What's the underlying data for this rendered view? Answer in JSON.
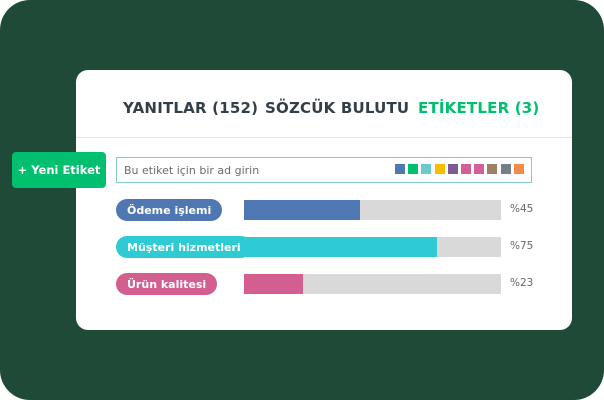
{
  "tabs": [
    {
      "label": "YANITLAR (152)",
      "active": false
    },
    {
      "label": "SÖZCÜK BULUTU",
      "active": false
    },
    {
      "label": "ETİKETLER (3)",
      "active": true
    }
  ],
  "new_tag_button": "+ Yeni Etiket",
  "tag_input": {
    "placeholder": "Bu etiket için bir ad girin",
    "value": ""
  },
  "swatches": [
    "#4f78b3",
    "#00bf6f",
    "#6ec9cf",
    "#f6be00",
    "#7d5a91",
    "#d25f98",
    "#d25f98",
    "#9c8061",
    "#73808a",
    "#f5894a"
  ],
  "tags": [
    {
      "label": "Ödeme işlemi",
      "color": "#4f78b3",
      "percent": 45,
      "percent_label": "%45"
    },
    {
      "label": "Müşteri hizmetleri",
      "color": "#2ecbd4",
      "percent": 75,
      "percent_label": "%75"
    },
    {
      "label": "Ürün kalitesi",
      "color": "#d25f90",
      "percent": 23,
      "percent_label": "%23"
    }
  ]
}
